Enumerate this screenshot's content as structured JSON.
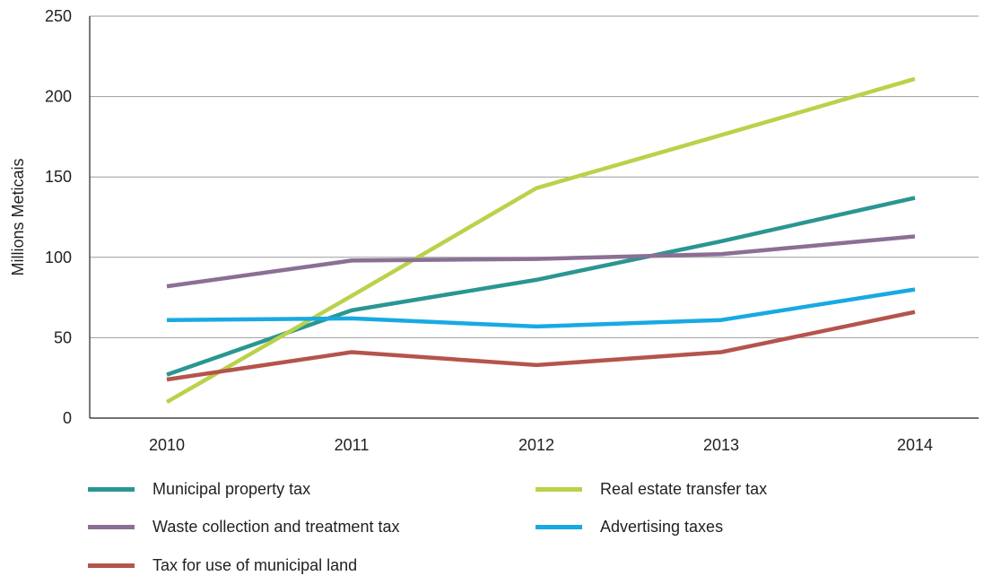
{
  "chart_data": {
    "type": "line",
    "title": "",
    "xlabel": "",
    "ylabel": "Millions Meticais",
    "x": [
      "2010",
      "2011",
      "2012",
      "2013",
      "2014"
    ],
    "ylim": [
      0,
      250
    ],
    "yticks": [
      0,
      50,
      100,
      150,
      200,
      250
    ],
    "grid": "horizontal",
    "legend_position": "bottom",
    "series": [
      {
        "name": "Municipal property tax",
        "color": "#2a9691",
        "values": [
          27,
          67,
          86,
          110,
          137
        ]
      },
      {
        "name": "Real estate transfer tax",
        "color": "#b9d24a",
        "values": [
          10,
          76,
          143,
          176,
          211
        ]
      },
      {
        "name": "Waste collection and treatment tax",
        "color": "#8c6f94",
        "values": [
          82,
          98,
          99,
          102,
          113
        ]
      },
      {
        "name": "Advertising taxes",
        "color": "#19a9e2",
        "values": [
          61,
          62,
          57,
          61,
          80
        ]
      },
      {
        "name": "Tax for use of municipal land",
        "color": "#b5544c",
        "values": [
          24,
          41,
          33,
          41,
          66
        ]
      }
    ]
  }
}
